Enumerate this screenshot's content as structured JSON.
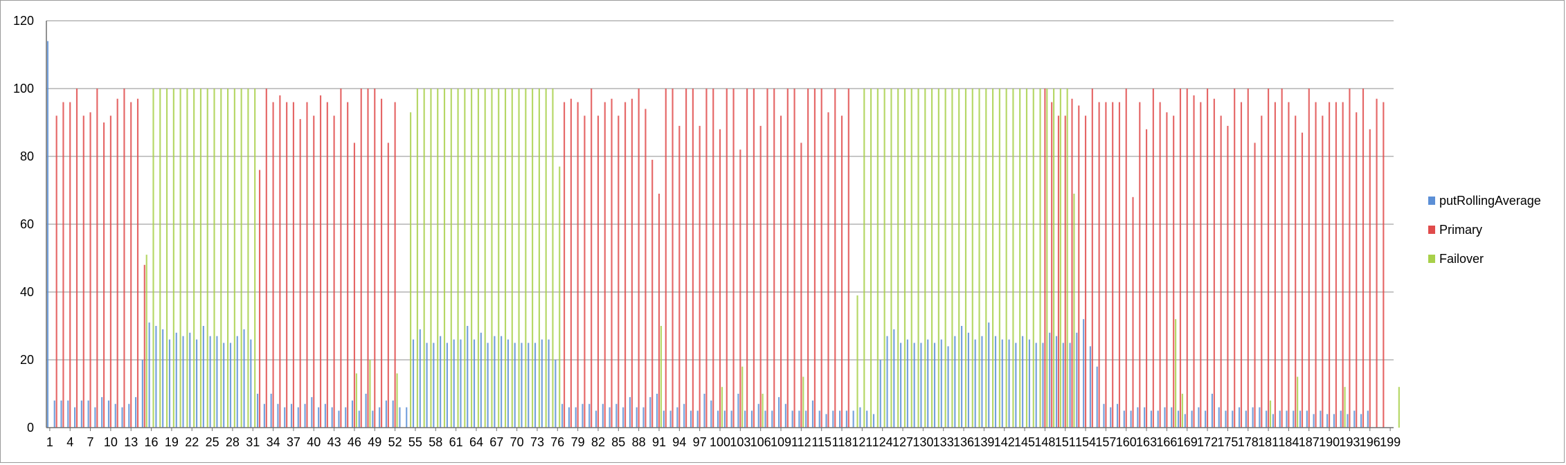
{
  "chart_data": {
    "type": "bar",
    "title": "",
    "xlabel": "",
    "ylabel": "",
    "ylim": [
      0,
      120
    ],
    "yticks": [
      0,
      20,
      40,
      60,
      80,
      100,
      120
    ],
    "grid": true,
    "legend_position": "right",
    "categories_start": 1,
    "categories_end": 199,
    "x_tick_labels": [
      "1",
      "4",
      "7",
      "10",
      "13",
      "16",
      "19",
      "22",
      "25",
      "28",
      "31",
      "34",
      "37",
      "40",
      "43",
      "46",
      "49",
      "52",
      "55",
      "58",
      "61",
      "64",
      "67",
      "70",
      "73",
      "76",
      "79",
      "82",
      "85",
      "88",
      "91",
      "94",
      "97",
      "100",
      "103",
      "106",
      "109",
      "112",
      "115",
      "118",
      "121",
      "124",
      "127",
      "130",
      "133",
      "136",
      "139",
      "142",
      "145",
      "148",
      "151",
      "154",
      "157",
      "160",
      "163",
      "166",
      "169",
      "172",
      "175",
      "178",
      "181",
      "184",
      "187",
      "190",
      "193",
      "196",
      "199"
    ],
    "colors": {
      "putRollingAverage": "#5b8fd6",
      "Primary": "#e04b4b",
      "Failover": "#a8d04a"
    },
    "series": [
      {
        "name": "putRollingAverage",
        "color": "#5b8fd6",
        "values": [
          114,
          8,
          8,
          8,
          6,
          8,
          8,
          6,
          9,
          8,
          7,
          6,
          7,
          9,
          20,
          31,
          30,
          29,
          26,
          28,
          27,
          28,
          26,
          30,
          27,
          27,
          25,
          25,
          27,
          29,
          26,
          10,
          7,
          10,
          7,
          6,
          7,
          6,
          7,
          9,
          6,
          7,
          6,
          5,
          6,
          8,
          5,
          10,
          5,
          6,
          8,
          8,
          6,
          6,
          26,
          29,
          25,
          25,
          27,
          25,
          26,
          26,
          30,
          26,
          28,
          25,
          27,
          27,
          26,
          25,
          25,
          25,
          25,
          26,
          26,
          20,
          7,
          6,
          6,
          7,
          7,
          5,
          7,
          6,
          7,
          6,
          9,
          6,
          6,
          9,
          10,
          5,
          5,
          6,
          7,
          5,
          5,
          10,
          8,
          5,
          5,
          5,
          10,
          5,
          5,
          7,
          5,
          5,
          9,
          7,
          5,
          5,
          5,
          8,
          5,
          4,
          5,
          5,
          5,
          5,
          6,
          5,
          4,
          20,
          27,
          29,
          25,
          26,
          25,
          25,
          26,
          25,
          26,
          24,
          27,
          30,
          28,
          26,
          27,
          31,
          27,
          26,
          26,
          25,
          27,
          26,
          25,
          25,
          28,
          27,
          25,
          25,
          28,
          32,
          24,
          18,
          7,
          6,
          7,
          5,
          5,
          6,
          6,
          5,
          5,
          6,
          6,
          5,
          4,
          5,
          6,
          5,
          10,
          6,
          5,
          5,
          6,
          5,
          6,
          6,
          5,
          4,
          5,
          5,
          5,
          5,
          5,
          4,
          5,
          4,
          4,
          5,
          4,
          5,
          4,
          5
        ]
      },
      {
        "name": "Primary",
        "color": "#e04b4b",
        "values": [
          0,
          92,
          96,
          96,
          100,
          92,
          93,
          100,
          90,
          92,
          97,
          100,
          96,
          97,
          48,
          0,
          0,
          0,
          0,
          0,
          0,
          0,
          0,
          0,
          0,
          0,
          0,
          0,
          0,
          0,
          0,
          76,
          100,
          96,
          98,
          96,
          96,
          91,
          96,
          92,
          98,
          96,
          92,
          100,
          96,
          84,
          100,
          100,
          100,
          97,
          84,
          96,
          0,
          0,
          0,
          0,
          0,
          0,
          0,
          0,
          0,
          0,
          0,
          0,
          0,
          0,
          0,
          0,
          0,
          0,
          0,
          0,
          0,
          0,
          0,
          0,
          96,
          97,
          96,
          92,
          100,
          92,
          96,
          97,
          92,
          96,
          97,
          100,
          94,
          79,
          69,
          100,
          100,
          89,
          100,
          100,
          89,
          100,
          100,
          88,
          100,
          100,
          82,
          100,
          100,
          89,
          100,
          100,
          92,
          100,
          100,
          84,
          100,
          100,
          100,
          93,
          100,
          92,
          100,
          0,
          0,
          0,
          0,
          0,
          0,
          0,
          0,
          0,
          0,
          0,
          0,
          0,
          0,
          0,
          0,
          0,
          0,
          0,
          0,
          0,
          0,
          0,
          0,
          0,
          0,
          0,
          0,
          100,
          96,
          92,
          92,
          97,
          95,
          92,
          100,
          96,
          96,
          96,
          96,
          100,
          68,
          96,
          88,
          100,
          96,
          93,
          92,
          100,
          100,
          98,
          96,
          100,
          97,
          92,
          89,
          100,
          96,
          100,
          84,
          92,
          100,
          96,
          100,
          96,
          92,
          87,
          100,
          96,
          92,
          96,
          96,
          96,
          100,
          93,
          100,
          88,
          97,
          96
        ]
      },
      {
        "name": "Failover",
        "color": "#a8d04a",
        "values": [
          0,
          0,
          0,
          0,
          0,
          0,
          0,
          0,
          0,
          0,
          0,
          0,
          0,
          0,
          51,
          100,
          100,
          100,
          100,
          100,
          100,
          100,
          100,
          100,
          100,
          100,
          100,
          100,
          100,
          100,
          100,
          0,
          0,
          0,
          0,
          0,
          0,
          0,
          0,
          0,
          0,
          0,
          0,
          0,
          0,
          16,
          0,
          20,
          0,
          0,
          0,
          16,
          0,
          93,
          100,
          100,
          100,
          100,
          100,
          100,
          100,
          100,
          100,
          100,
          100,
          100,
          100,
          100,
          100,
          100,
          100,
          100,
          100,
          100,
          100,
          77,
          0,
          0,
          0,
          0,
          0,
          0,
          0,
          0,
          0,
          0,
          0,
          0,
          0,
          0,
          30,
          0,
          0,
          0,
          0,
          0,
          0,
          0,
          0,
          12,
          0,
          0,
          18,
          0,
          0,
          10,
          0,
          0,
          0,
          0,
          0,
          15,
          0,
          0,
          0,
          0,
          0,
          0,
          0,
          39,
          100,
          100,
          100,
          100,
          100,
          100,
          100,
          100,
          100,
          100,
          100,
          100,
          100,
          100,
          100,
          100,
          100,
          100,
          100,
          100,
          100,
          100,
          100,
          100,
          100,
          100,
          100,
          100,
          100,
          100,
          100,
          69,
          0,
          0,
          0,
          0,
          0,
          0,
          0,
          0,
          0,
          0,
          0,
          0,
          0,
          0,
          32,
          10,
          0,
          0,
          0,
          0,
          0,
          0,
          0,
          0,
          0,
          0,
          0,
          0,
          8,
          0,
          0,
          0,
          15,
          0,
          0,
          0,
          0,
          0,
          0,
          12,
          0,
          0,
          0,
          0,
          0,
          0,
          0,
          12,
          0,
          0
        ]
      }
    ]
  }
}
